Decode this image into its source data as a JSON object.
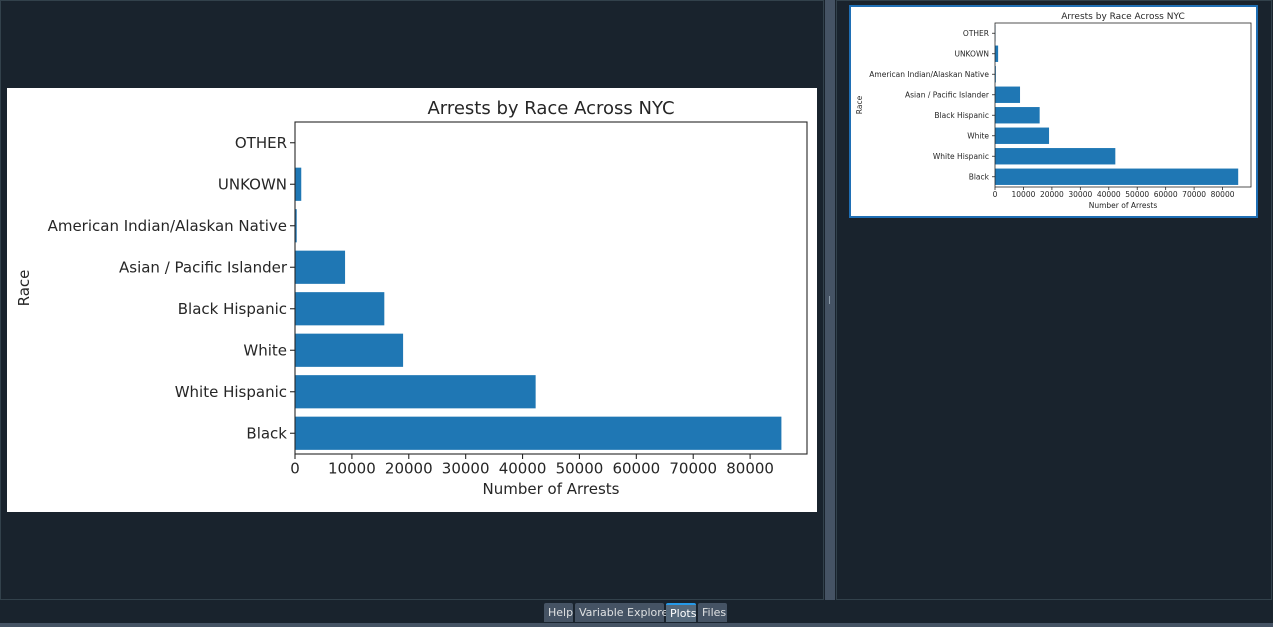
{
  "tabs": [
    {
      "label": "Help",
      "active": false
    },
    {
      "label": "Variable Explorer",
      "active": false
    },
    {
      "label": "Plots",
      "active": true
    },
    {
      "label": "Files",
      "active": false
    }
  ],
  "colors": {
    "bar": "#1f77b4",
    "background": "#19232d",
    "active_tab_accent": "#259ae9"
  },
  "chart_data": {
    "type": "bar",
    "orientation": "horizontal",
    "title": "Arrests by Race Across NYC",
    "xlabel": "Number of Arrests",
    "ylabel": "Race",
    "categories": [
      "Black",
      "White Hispanic",
      "White",
      "Black Hispanic",
      "Asian / Pacific Islander",
      "American Indian/Alaskan Native",
      "UNKOWN",
      "OTHER"
    ],
    "values": [
      85500,
      42300,
      19000,
      15700,
      8800,
      300,
      1100,
      50
    ],
    "xlim": [
      0,
      90000
    ],
    "xticks": [
      0,
      10000,
      20000,
      30000,
      40000,
      50000,
      60000,
      70000,
      80000
    ],
    "grid": false
  }
}
